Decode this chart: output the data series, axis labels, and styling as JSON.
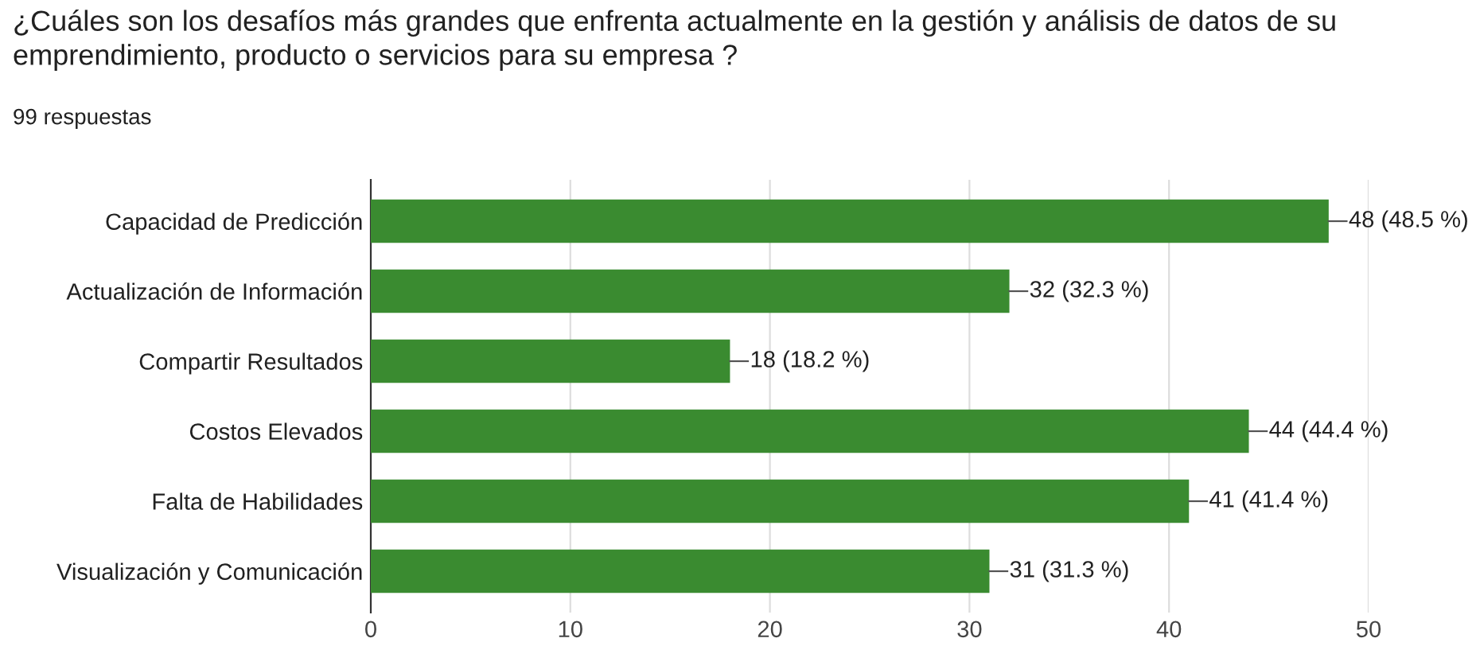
{
  "chart_data": {
    "type": "bar",
    "orientation": "horizontal",
    "title": "¿Cuáles son los desafíos más grandes que enfrenta actualmente en la gestión y análisis de datos de su emprendimiento, producto o servicios para su empresa ?",
    "subtitle": "99 respuestas",
    "categories": [
      "Capacidad de Predicción",
      "Actualización de Información",
      "Compartir Resultados",
      "Costos Elevados",
      "Falta de Habilidades",
      "Visualización y Comunicación"
    ],
    "values": [
      48,
      32,
      18,
      44,
      41,
      31
    ],
    "value_labels": [
      "48 (48.5 %)",
      "32 (32.3 %)",
      "18 (18.2 %)",
      "44 (44.4 %)",
      "41 (41.4 %)",
      "31 (31.3 %)"
    ],
    "color": "#3a8b30",
    "xlim": [
      0,
      50
    ],
    "xticks": [
      0,
      10,
      20,
      30,
      40,
      50
    ],
    "grid": "x",
    "legend": false
  }
}
